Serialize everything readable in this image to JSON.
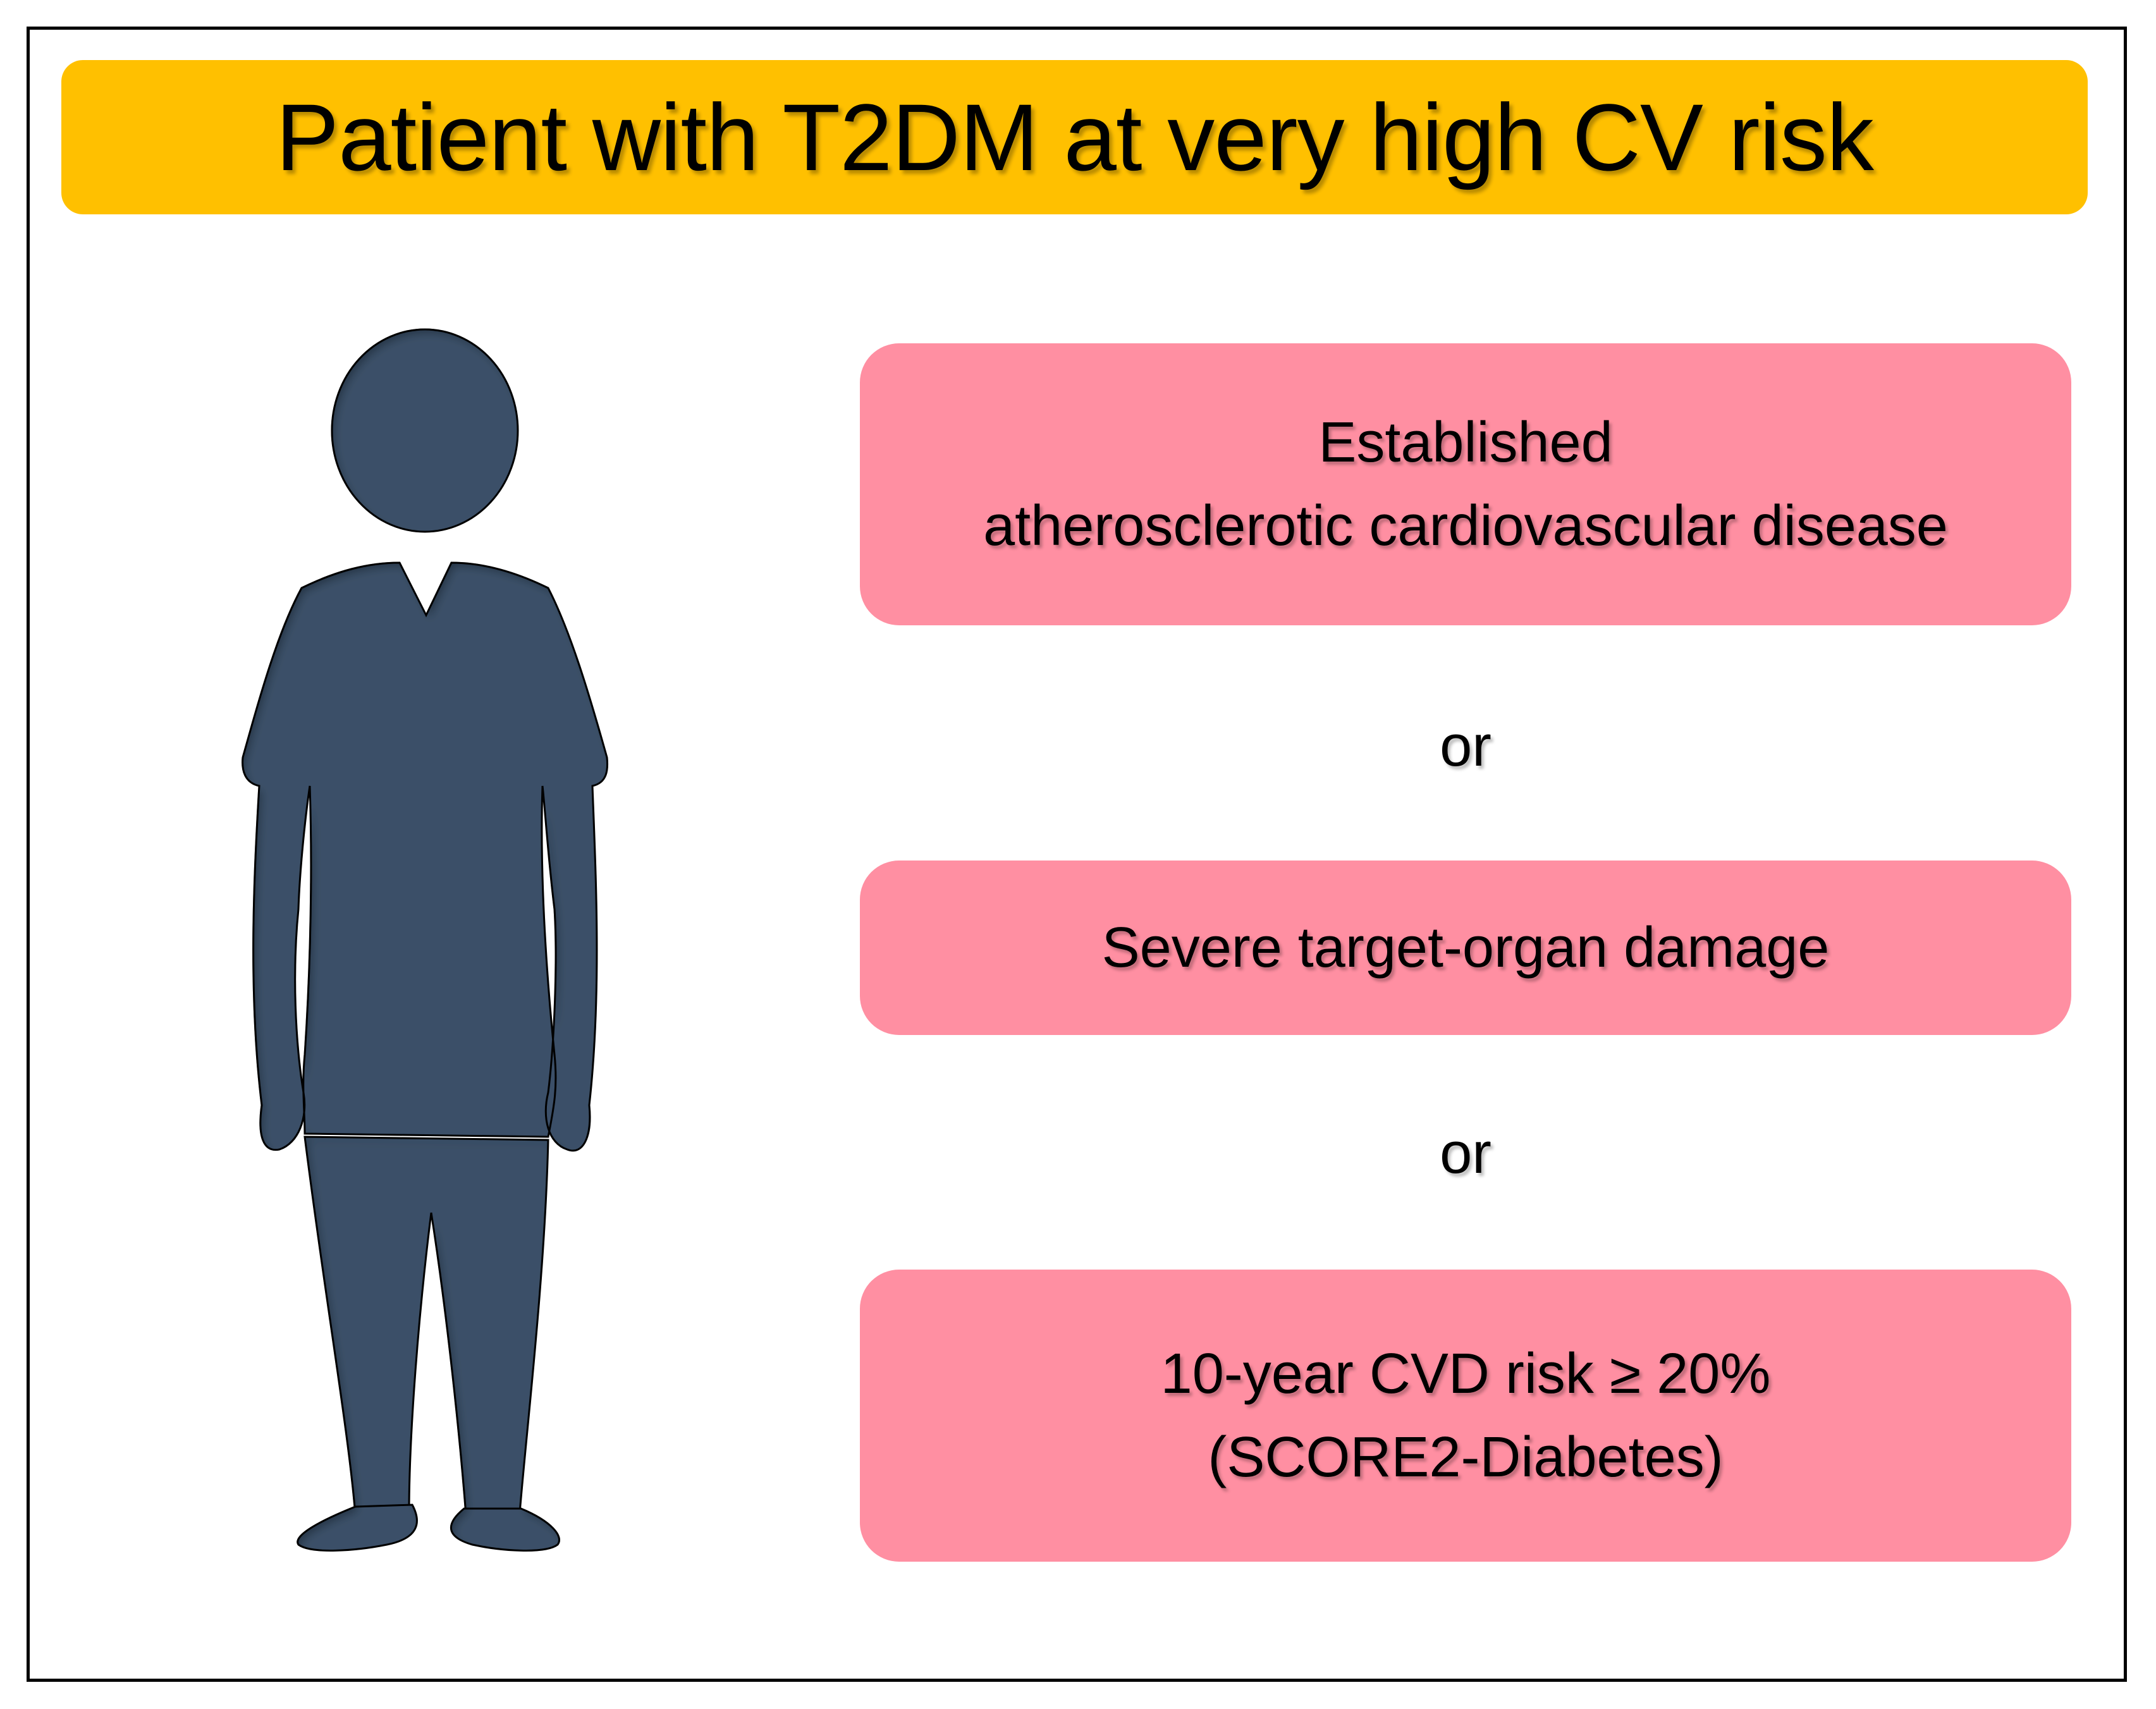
{
  "title": "Patient with T2DM at very high CV risk",
  "colors": {
    "banner": "#FFC000",
    "box": "#FF8FA2",
    "figure": "#3B5068",
    "frame": "#000000"
  },
  "figure_icon": "person-silhouette-icon",
  "criteria": [
    {
      "lines": [
        "Established",
        "atherosclerotic cardiovascular disease"
      ]
    },
    {
      "lines": [
        "Severe target-organ damage"
      ]
    },
    {
      "lines": [
        "10-year CVD risk ≥ 20%",
        "(SCORE2-Diabetes)"
      ]
    }
  ],
  "connectors": [
    "or",
    "or"
  ]
}
